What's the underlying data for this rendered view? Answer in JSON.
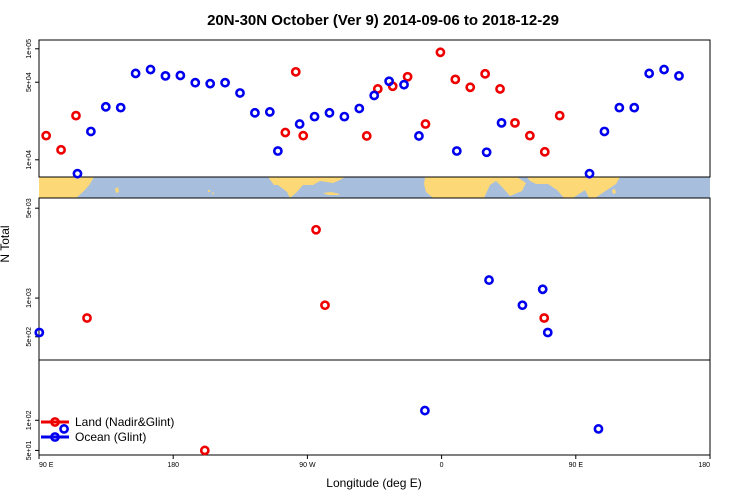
{
  "chart_data": {
    "type": "scatter",
    "title": "20N-30N October (Ver 9)   2014-09-06 to 2018-12-29",
    "xlabel": "Longitude (deg E)",
    "ylabel": "N Total",
    "x_ticks": [
      "90 E",
      "180",
      "90 W",
      "0",
      "90 E",
      "180"
    ],
    "x_tick_values": [
      90,
      180,
      270,
      360,
      450,
      540
    ],
    "xlim": [
      90,
      540
    ],
    "y_scale": "log",
    "colors": {
      "land": "#ee0000",
      "ocean": "#0000ee",
      "map_ocean": "#a7bedd",
      "map_land": "#fcd877"
    },
    "panels": [
      {
        "ylim": [
          7000,
          120000
        ],
        "y_ticks": [
          "1e+05",
          "5e+04",
          "1e+04"
        ],
        "y_tick_values": [
          100000,
          50000,
          10000
        ]
      },
      {
        "ylim": [
          330,
          6000
        ],
        "y_ticks": [
          "5e+03",
          "1e+03",
          "5e+02"
        ],
        "y_tick_values": [
          5000,
          1000,
          500
        ]
      },
      {
        "ylim": [
          45,
          400
        ],
        "y_ticks": [
          "1e+02",
          "5e+01"
        ],
        "y_tick_values": [
          100,
          50
        ]
      }
    ],
    "series": [
      {
        "name": "Land (Nadir&Glint)",
        "key": "land",
        "points": [
          [
            94.8,
            0,
            16500
          ],
          [
            104.8,
            0,
            12300
          ],
          [
            114.8,
            0,
            25000
          ],
          [
            122.2,
            1,
            700
          ],
          [
            201.2,
            2,
            50
          ],
          [
            255.2,
            0,
            17600
          ],
          [
            262.2,
            0,
            62000
          ],
          [
            267.2,
            0,
            16500
          ],
          [
            275.8,
            1,
            3400
          ],
          [
            281.8,
            1,
            880
          ],
          [
            309.8,
            0,
            16400
          ],
          [
            317.2,
            0,
            43500
          ],
          [
            327.2,
            0,
            46000
          ],
          [
            337.2,
            0,
            56000
          ],
          [
            349.2,
            0,
            21000
          ],
          [
            359.2,
            0,
            93000
          ],
          [
            369.2,
            0,
            53000
          ],
          [
            379.2,
            0,
            45000
          ],
          [
            389.2,
            0,
            59500
          ],
          [
            399.2,
            0,
            43500
          ],
          [
            409.2,
            0,
            21500
          ],
          [
            419.2,
            0,
            16500
          ],
          [
            429.2,
            0,
            11800
          ],
          [
            428.8,
            1,
            700
          ],
          [
            439.2,
            0,
            25000
          ]
        ]
      },
      {
        "name": "Ocean (Glint)",
        "key": "ocean",
        "points": [
          [
            115.8,
            0,
            7500
          ],
          [
            124.8,
            0,
            18000
          ],
          [
            134.8,
            0,
            30000
          ],
          [
            144.8,
            0,
            29500
          ],
          [
            154.8,
            0,
            60000
          ],
          [
            164.8,
            0,
            65000
          ],
          [
            174.8,
            0,
            57000
          ],
          [
            184.8,
            0,
            57500
          ],
          [
            194.8,
            0,
            49500
          ],
          [
            204.8,
            0,
            48500
          ],
          [
            214.8,
            0,
            49500
          ],
          [
            224.8,
            0,
            40000
          ],
          [
            234.8,
            0,
            26500
          ],
          [
            244.8,
            0,
            27000
          ],
          [
            250.2,
            0,
            12000
          ],
          [
            264.8,
            0,
            21000
          ],
          [
            274.8,
            0,
            24500
          ],
          [
            284.8,
            0,
            26500
          ],
          [
            294.8,
            0,
            24500
          ],
          [
            304.8,
            0,
            29000
          ],
          [
            314.8,
            0,
            38000
          ],
          [
            324.8,
            0,
            51000
          ],
          [
            334.8,
            0,
            47500
          ],
          [
            344.8,
            0,
            16400
          ],
          [
            370.2,
            0,
            12000
          ],
          [
            390.2,
            0,
            11700
          ],
          [
            400.2,
            0,
            21500
          ],
          [
            459.2,
            0,
            7500
          ],
          [
            469.2,
            0,
            18000
          ],
          [
            479.2,
            0,
            29500
          ],
          [
            489.2,
            0,
            29500
          ],
          [
            499.2,
            0,
            60000
          ],
          [
            509.2,
            0,
            65000
          ],
          [
            519.2,
            0,
            57000
          ],
          [
            90.2,
            1,
            540
          ],
          [
            391.8,
            1,
            1380
          ],
          [
            414.2,
            1,
            880
          ],
          [
            427.8,
            1,
            1170
          ],
          [
            431.2,
            1,
            540
          ],
          [
            106.8,
            2,
            82
          ],
          [
            348.8,
            2,
            125
          ],
          [
            465.2,
            2,
            82
          ]
        ]
      }
    ],
    "legend": {
      "position": "bottom-left"
    }
  }
}
